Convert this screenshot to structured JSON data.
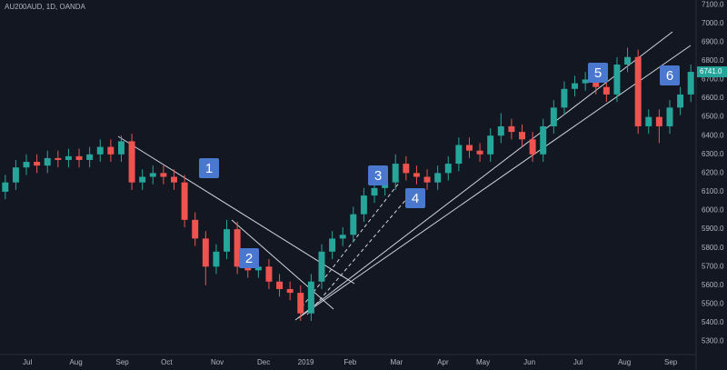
{
  "chart_data": {
    "type": "candlestick",
    "title": "AU200AUD, 1D, OANDA",
    "x": [
      2.5,
      7.5,
      12.5,
      17.5,
      22.5,
      27.5,
      32.5,
      37.5,
      42.5,
      47.5,
      52.5,
      57.5,
      62.5,
      67.5,
      72.5,
      77.5,
      82.5,
      87.5,
      92.5,
      97.5,
      102.5,
      107.5,
      112.5,
      117.5,
      122.5,
      127.5,
      132.5,
      137.5,
      142.5,
      147.5,
      152.5,
      157.5,
      162.5,
      167.5,
      172.5,
      177.5,
      182.5,
      187.5,
      192.5,
      197.5,
      202.5,
      207.5,
      212.5,
      217.5,
      222.5,
      227.5,
      232.5,
      237.5,
      242.5,
      247.5,
      252.5,
      257.5,
      262.5,
      267.5,
      272.5,
      277.5,
      282.5,
      287.5,
      292.5,
      297.5,
      302.5,
      307.5,
      312.5,
      317.5,
      322.5,
      327.5
    ],
    "open": [
      6100,
      6150,
      6230,
      6260,
      6240,
      6280,
      6270,
      6290,
      6270,
      6300,
      6340,
      6300,
      6370,
      6150,
      6180,
      6200,
      6180,
      6150,
      5950,
      5850,
      5700,
      5780,
      5900,
      5700,
      5680,
      5700,
      5620,
      5580,
      5560,
      5450,
      5620,
      5780,
      5850,
      5870,
      5980,
      6080,
      6120,
      6150,
      6250,
      6200,
      6180,
      6150,
      6200,
      6250,
      6350,
      6320,
      6300,
      6400,
      6450,
      6420,
      6380,
      6300,
      6450,
      6550,
      6650,
      6680,
      6700,
      6660,
      6620,
      6780,
      6820,
      6450,
      6500,
      6450,
      6550,
      6620
    ],
    "high": [
      6190,
      6270,
      6300,
      6300,
      6320,
      6320,
      6330,
      6330,
      6340,
      6380,
      6380,
      6400,
      6410,
      6220,
      6240,
      6240,
      6220,
      6190,
      5990,
      5890,
      5820,
      5950,
      5940,
      5740,
      5740,
      5740,
      5660,
      5620,
      5600,
      5660,
      5820,
      5890,
      5910,
      6020,
      6120,
      6160,
      6190,
      6300,
      6290,
      6240,
      6220,
      6240,
      6290,
      6390,
      6390,
      6360,
      6440,
      6520,
      6490,
      6460,
      6420,
      6490,
      6590,
      6690,
      6720,
      6740,
      6740,
      6700,
      6820,
      6870,
      6860,
      6540,
      6540,
      6590,
      6660,
      6780
    ],
    "low": [
      6060,
      6110,
      6190,
      6200,
      6200,
      6230,
      6230,
      6230,
      6230,
      6260,
      6260,
      6260,
      6110,
      6110,
      6140,
      6140,
      6110,
      5910,
      5810,
      5600,
      5660,
      5740,
      5660,
      5640,
      5640,
      5580,
      5540,
      5520,
      5410,
      5410,
      5580,
      5740,
      5810,
      5830,
      5940,
      6040,
      6080,
      6110,
      6160,
      6140,
      6110,
      6110,
      6160,
      6210,
      6280,
      6260,
      6260,
      6360,
      6380,
      6340,
      6260,
      6260,
      6410,
      6510,
      6610,
      6640,
      6620,
      6580,
      6580,
      6740,
      6410,
      6410,
      6360,
      6410,
      6510,
      6580
    ],
    "close": [
      6150,
      6230,
      6260,
      6240,
      6280,
      6270,
      6290,
      6270,
      6300,
      6340,
      6300,
      6370,
      6150,
      6180,
      6200,
      6180,
      6150,
      5950,
      5850,
      5700,
      5780,
      5900,
      5700,
      5680,
      5700,
      5620,
      5580,
      5560,
      5450,
      5620,
      5780,
      5850,
      5870,
      5980,
      6080,
      6120,
      6150,
      6250,
      6200,
      6180,
      6150,
      6200,
      6250,
      6350,
      6320,
      6300,
      6400,
      6450,
      6420,
      6380,
      6300,
      6450,
      6550,
      6650,
      6680,
      6700,
      6660,
      6620,
      6780,
      6820,
      6450,
      6500,
      6450,
      6550,
      6620,
      6741
    ],
    "up_color": "#26a69a",
    "down_color": "#ef5350",
    "xlim": [
      0,
      330
    ],
    "xticks": [
      {
        "value": 13,
        "label": "Jul"
      },
      {
        "value": 36,
        "label": "Aug"
      },
      {
        "value": 58,
        "label": "Sep"
      },
      {
        "value": 79,
        "label": "Oct"
      },
      {
        "value": 103,
        "label": "Nov"
      },
      {
        "value": 125,
        "label": "Dec"
      },
      {
        "value": 145,
        "label": "2019"
      },
      {
        "value": 166,
        "label": "Feb"
      },
      {
        "value": 188,
        "label": "Mar"
      },
      {
        "value": 210,
        "label": "Apr"
      },
      {
        "value": 229,
        "label": "May"
      },
      {
        "value": 251,
        "label": "Jun"
      },
      {
        "value": 274,
        "label": "Jul"
      },
      {
        "value": 296,
        "label": "Aug"
      },
      {
        "value": 318,
        "label": "Sep"
      }
    ],
    "ylim": [
      5230,
      7125
    ],
    "yticks": [
      {
        "value": 5300,
        "label": "5300.0"
      },
      {
        "value": 5400,
        "label": "5400.0"
      },
      {
        "value": 5500,
        "label": "5500.0"
      },
      {
        "value": 5600,
        "label": "5600.0"
      },
      {
        "value": 5700,
        "label": "5700.0"
      },
      {
        "value": 5800,
        "label": "5800.0"
      },
      {
        "value": 5900,
        "label": "5900.0"
      },
      {
        "value": 6000,
        "label": "6000.0"
      },
      {
        "value": 6100,
        "label": "6100.0"
      },
      {
        "value": 6200,
        "label": "6200.0"
      },
      {
        "value": 6300,
        "label": "6300.0"
      },
      {
        "value": 6400,
        "label": "6400.0"
      },
      {
        "value": 6500,
        "label": "6500.0"
      },
      {
        "value": 6600,
        "label": "6600.0"
      },
      {
        "value": 6700,
        "label": "6700.0"
      },
      {
        "value": 6800,
        "label": "6800.0"
      },
      {
        "value": 6900,
        "label": "6900.0"
      },
      {
        "value": 7000,
        "label": "7000.0"
      },
      {
        "value": 7100,
        "label": "7100.0"
      }
    ],
    "last_price": {
      "value": 6741,
      "label": "6741.0"
    },
    "last_price_color": "#26a69a",
    "grid": false,
    "annotations": [
      "1",
      "2",
      "3",
      "4",
      "5",
      "6"
    ],
    "annotation_color": "#4a78cf"
  }
}
